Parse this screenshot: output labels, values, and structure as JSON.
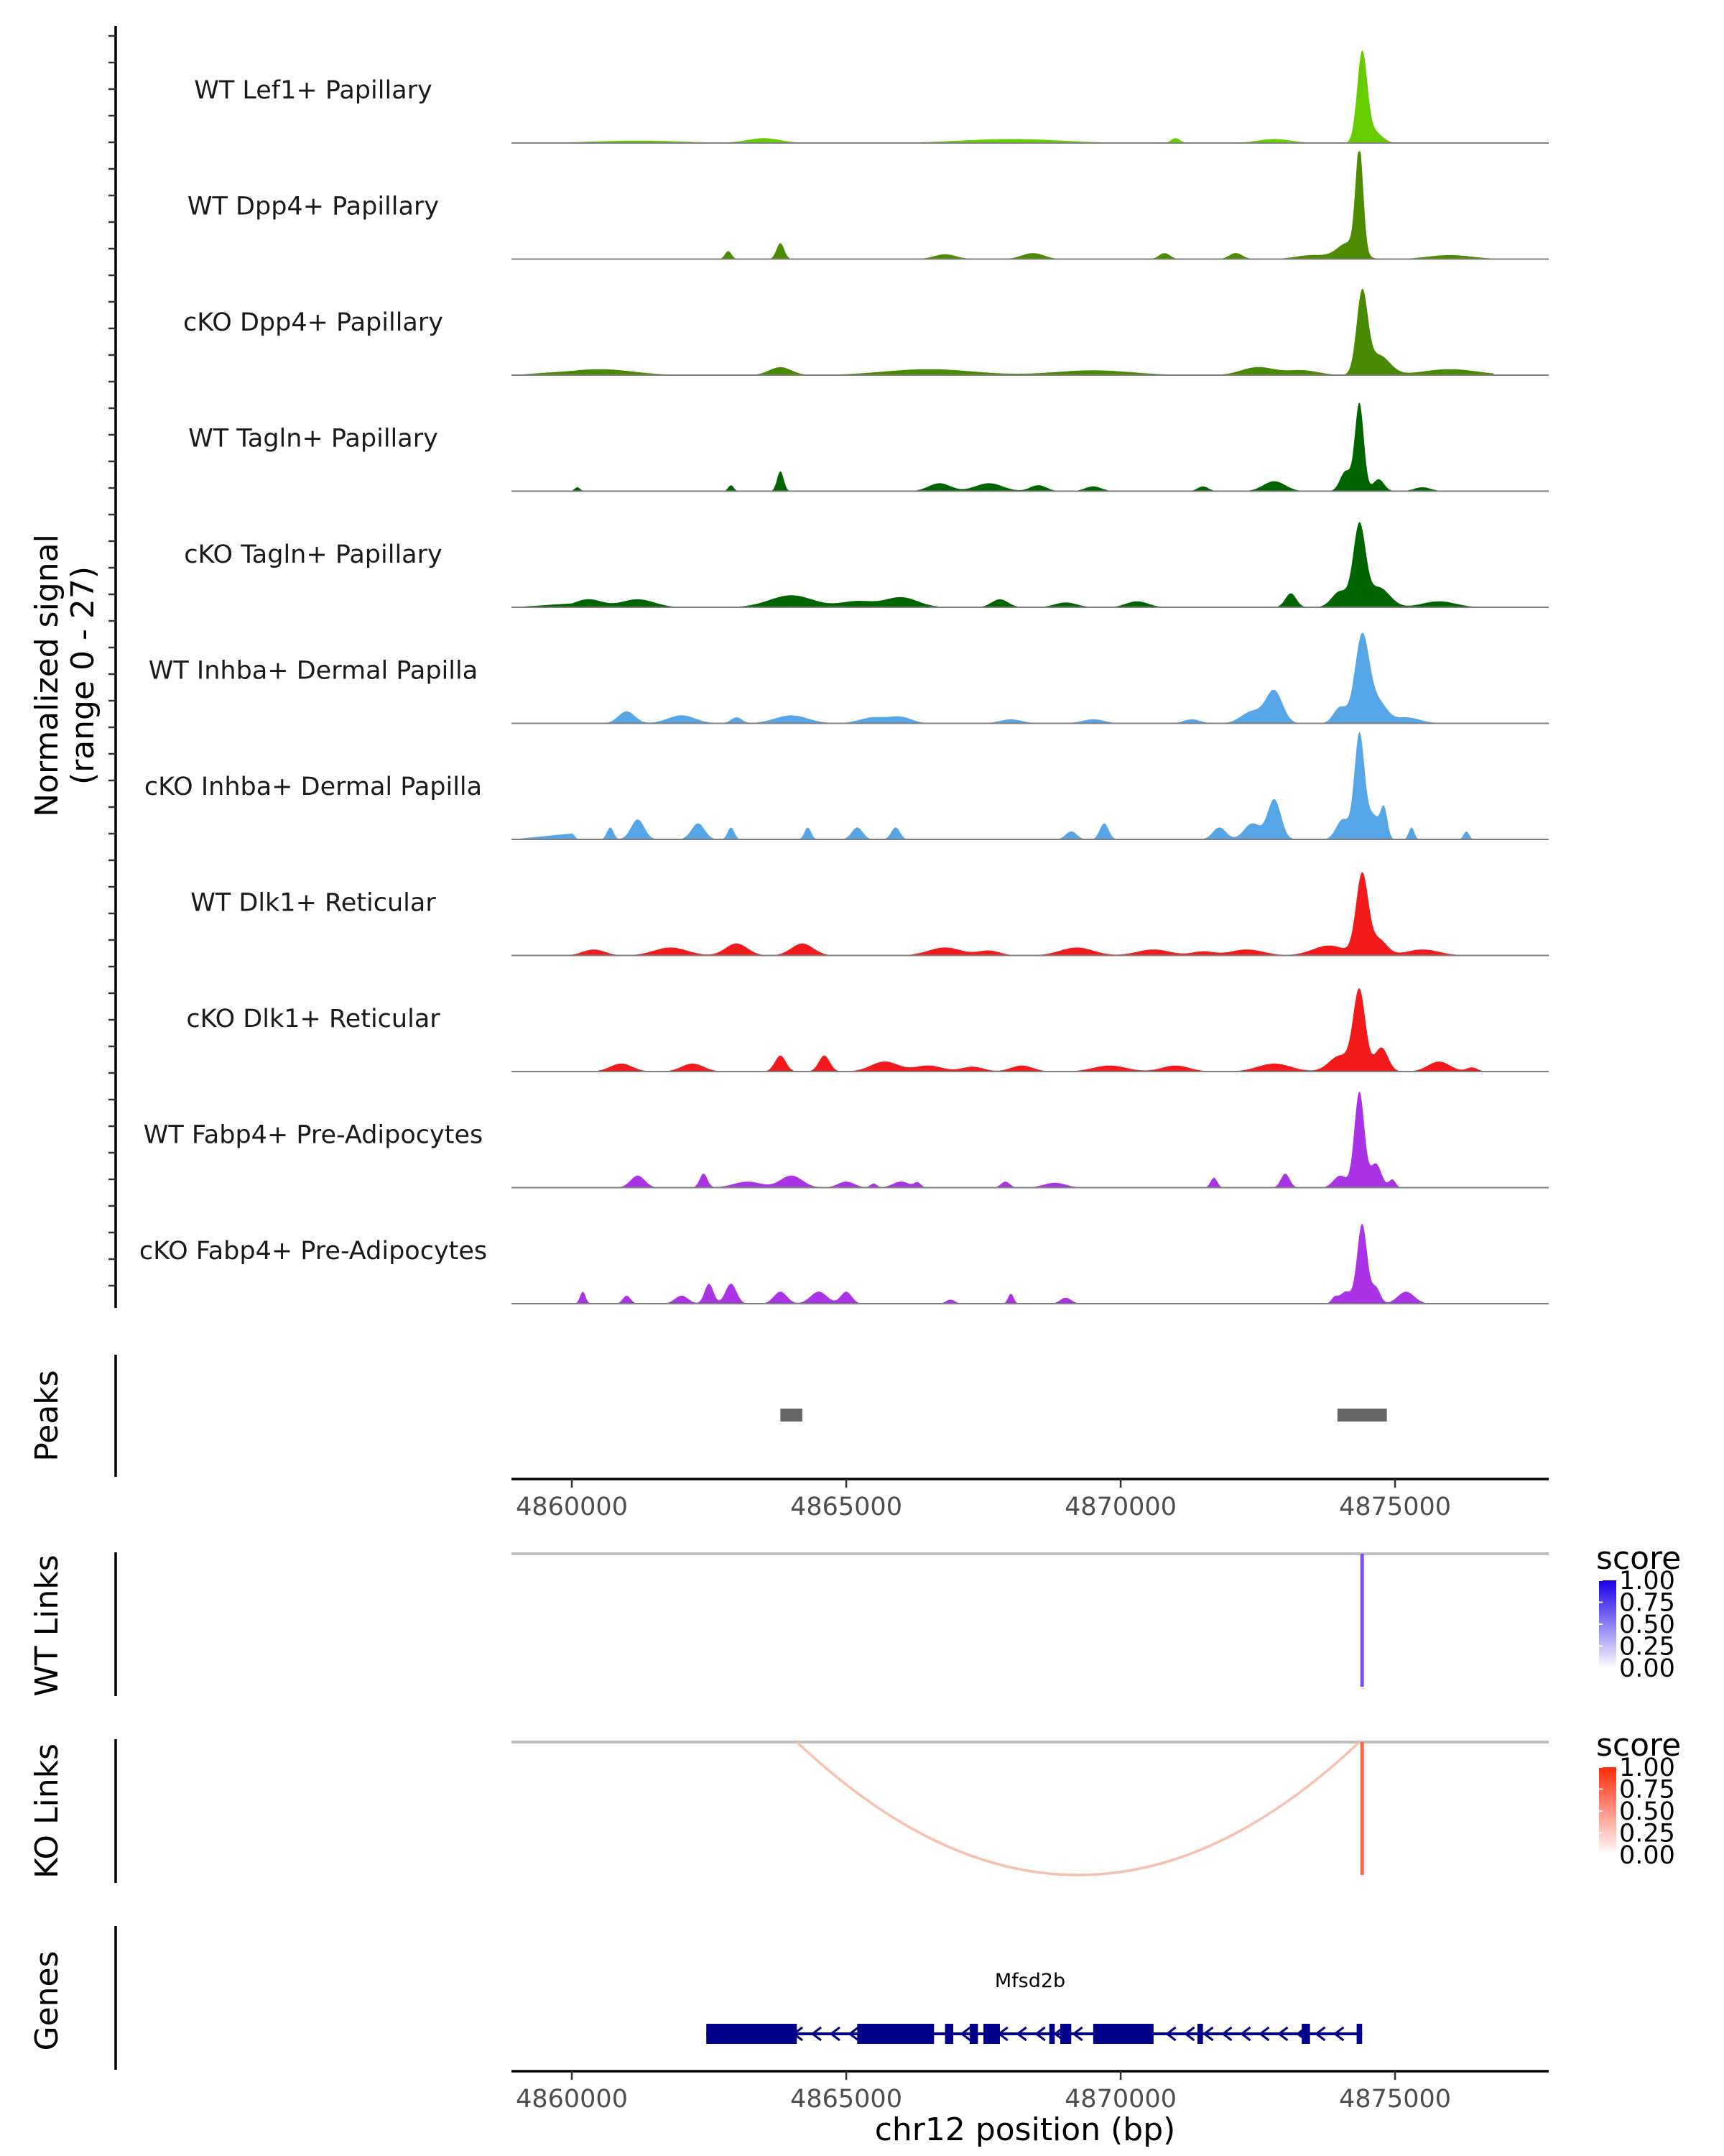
{
  "chart_data": {
    "type": "area",
    "title": "",
    "ylabel": "Normalized signal\n(range 0 - 27)",
    "xlabel": "chr12 position (bp)",
    "xlim": [
      4858900,
      4877800
    ],
    "ylim": [
      0,
      27
    ],
    "x_ticks": [
      4860000,
      4865000,
      4870000,
      4875000
    ],
    "x_tick_labels": [
      "4860000",
      "4865000",
      "4870000",
      "4875000"
    ],
    "tracks": [
      {
        "name": "WT Lef1+ Papillary",
        "color": "#66cc00",
        "peaks": [
          [
            4874400,
            22,
            90
          ],
          [
            4874600,
            3,
            150
          ],
          [
            4872800,
            1,
            300
          ],
          [
            4868000,
            1,
            900
          ],
          [
            4863500,
            1.2,
            300
          ],
          [
            4861200,
            0.6,
            800
          ],
          [
            4871000,
            1.2,
            80
          ]
        ]
      },
      {
        "name": "WT Dpp4+ Papillary",
        "color": "#4d8c00",
        "peaks": [
          [
            4874350,
            26,
            70
          ],
          [
            4874150,
            4,
            200
          ],
          [
            4863800,
            4,
            70
          ],
          [
            4862850,
            2,
            60
          ],
          [
            4872100,
            1.5,
            120
          ],
          [
            4868400,
            1.5,
            200
          ],
          [
            4866800,
            1.2,
            200
          ],
          [
            4870800,
            1.5,
            100
          ],
          [
            4873500,
            1,
            300
          ],
          [
            4876000,
            1,
            400
          ]
        ]
      },
      {
        "name": "cKO Dpp4+ Papillary",
        "color": "#478a00",
        "peaks": [
          [
            4874400,
            20,
            100
          ],
          [
            4874700,
            5,
            200
          ],
          [
            4872500,
            2,
            300
          ],
          [
            4863800,
            2,
            200
          ],
          [
            4860500,
            1.5,
            600
          ],
          [
            4866500,
            1.5,
            800
          ],
          [
            4869500,
            1.2,
            700
          ],
          [
            4876000,
            1.5,
            500
          ],
          [
            4873300,
            1.2,
            300
          ]
        ]
      },
      {
        "name": "WT Tagln+ Papillary",
        "color": "#006400",
        "peaks": [
          [
            4874350,
            22,
            80
          ],
          [
            4874100,
            5,
            100
          ],
          [
            4874700,
            3,
            100
          ],
          [
            4863800,
            5,
            60
          ],
          [
            4866700,
            2,
            200
          ],
          [
            4867600,
            2,
            250
          ],
          [
            4872800,
            2.5,
            200
          ],
          [
            4868500,
            1.5,
            150
          ],
          [
            4869500,
            1.2,
            150
          ],
          [
            4871500,
            1.2,
            100
          ],
          [
            4862900,
            1.5,
            50
          ],
          [
            4860100,
            1,
            50
          ],
          [
            4875500,
            1,
            150
          ]
        ]
      },
      {
        "name": "cKO Tagln+ Papillary",
        "color": "#006400",
        "peaks": [
          [
            4874350,
            20,
            110
          ],
          [
            4874700,
            5,
            200
          ],
          [
            4874000,
            4,
            150
          ],
          [
            4873100,
            3.5,
            100
          ],
          [
            4864000,
            3,
            400
          ],
          [
            4866000,
            2.5,
            300
          ],
          [
            4861200,
            2,
            300
          ],
          [
            4860300,
            2,
            250
          ],
          [
            4867800,
            2,
            150
          ],
          [
            4870300,
            1.5,
            200
          ],
          [
            4875800,
            1.5,
            300
          ],
          [
            4865200,
            1.5,
            300
          ],
          [
            4869000,
            1.2,
            200
          ]
        ]
      },
      {
        "name": "WT Inhba+ Dermal Papilla",
        "color": "#56a5e6",
        "peaks": [
          [
            4874400,
            22,
            130
          ],
          [
            4874700,
            5,
            150
          ],
          [
            4874000,
            4,
            120
          ],
          [
            4872800,
            8,
            150
          ],
          [
            4872400,
            3,
            200
          ],
          [
            4861000,
            3,
            150
          ],
          [
            4862000,
            2,
            250
          ],
          [
            4864000,
            2,
            300
          ],
          [
            4865500,
            1.5,
            250
          ],
          [
            4866000,
            1.5,
            200
          ],
          [
            4868000,
            1,
            200
          ],
          [
            4869500,
            1,
            200
          ],
          [
            4871300,
            1,
            150
          ],
          [
            4875200,
            1.5,
            250
          ],
          [
            4863000,
            1.5,
            100
          ]
        ]
      },
      {
        "name": "cKO Inhba+ Dermal Papilla",
        "color": "#56a5e6",
        "peaks": [
          [
            4874350,
            26,
            90
          ],
          [
            4874600,
            6,
            120
          ],
          [
            4874050,
            5,
            120
          ],
          [
            4872800,
            10,
            120
          ],
          [
            4872400,
            4,
            150
          ],
          [
            4871800,
            3,
            120
          ],
          [
            4861200,
            5,
            120
          ],
          [
            4860700,
            3,
            60
          ],
          [
            4862300,
            4,
            120
          ],
          [
            4862900,
            3,
            60
          ],
          [
            4864300,
            3,
            60
          ],
          [
            4865200,
            3,
            100
          ],
          [
            4865900,
            3,
            80
          ],
          [
            4869700,
            4,
            80
          ],
          [
            4869100,
            2,
            100
          ],
          [
            4874800,
            7,
            60
          ],
          [
            4875300,
            3,
            50
          ],
          [
            4876300,
            2,
            50
          ],
          [
            4860000,
            1.5,
            50
          ]
        ]
      },
      {
        "name": "WT Dlk1+ Reticular",
        "color": "#f21a1a",
        "peaks": [
          [
            4874400,
            20,
            110
          ],
          [
            4874700,
            4,
            150
          ],
          [
            4873800,
            2.5,
            300
          ],
          [
            4864200,
            3,
            200
          ],
          [
            4863000,
            3,
            200
          ],
          [
            4861800,
            2,
            300
          ],
          [
            4860400,
            1.5,
            200
          ],
          [
            4866800,
            2,
            300
          ],
          [
            4869200,
            2,
            300
          ],
          [
            4870600,
            1.5,
            300
          ],
          [
            4872300,
            1.5,
            300
          ],
          [
            4875500,
            1.5,
            300
          ],
          [
            4867600,
            1.2,
            200
          ],
          [
            4871500,
            1,
            200
          ]
        ]
      },
      {
        "name": "cKO Dlk1+ Reticular",
        "color": "#f21a1a",
        "peaks": [
          [
            4874350,
            20,
            110
          ],
          [
            4874750,
            6,
            120
          ],
          [
            4874000,
            4,
            200
          ],
          [
            4863800,
            4,
            100
          ],
          [
            4864600,
            4,
            100
          ],
          [
            4865700,
            2.5,
            250
          ],
          [
            4860900,
            2,
            200
          ],
          [
            4862200,
            2,
            200
          ],
          [
            4866500,
            1.5,
            250
          ],
          [
            4868200,
            1.5,
            200
          ],
          [
            4869800,
            1.5,
            300
          ],
          [
            4871000,
            1.5,
            250
          ],
          [
            4872800,
            2,
            300
          ],
          [
            4875800,
            2.5,
            200
          ],
          [
            4876400,
            1,
            100
          ],
          [
            4867300,
            1.2,
            200
          ]
        ]
      },
      {
        "name": "WT Fabp4+ Pre-Adipocytes",
        "color": "#aa33e6",
        "peaks": [
          [
            4874350,
            24,
            90
          ],
          [
            4874650,
            6,
            100
          ],
          [
            4874000,
            3,
            120
          ],
          [
            4873000,
            3.5,
            80
          ],
          [
            4861200,
            3,
            130
          ],
          [
            4862400,
            3.5,
            70
          ],
          [
            4864000,
            3,
            200
          ],
          [
            4863200,
            1.5,
            250
          ],
          [
            4865000,
            1.5,
            150
          ],
          [
            4866000,
            1.5,
            150
          ],
          [
            4866300,
            1.2,
            60
          ],
          [
            4867900,
            1.5,
            80
          ],
          [
            4868800,
            1.2,
            200
          ],
          [
            4871700,
            2.5,
            60
          ],
          [
            4865500,
            1,
            60
          ],
          [
            4874950,
            2,
            60
          ]
        ]
      },
      {
        "name": "cKO Fabp4+ Pre-Adipocytes",
        "color": "#aa33e6",
        "peaks": [
          [
            4874400,
            20,
            90
          ],
          [
            4874650,
            4,
            80
          ],
          [
            4874100,
            3,
            100
          ],
          [
            4875200,
            3,
            150
          ],
          [
            4862900,
            5,
            100
          ],
          [
            4862500,
            5,
            80
          ],
          [
            4862000,
            2,
            120
          ],
          [
            4863800,
            3,
            120
          ],
          [
            4864500,
            3,
            150
          ],
          [
            4865000,
            3,
            100
          ],
          [
            4866900,
            1,
            80
          ],
          [
            4868000,
            2.5,
            50
          ],
          [
            4869000,
            1.5,
            100
          ],
          [
            4860200,
            3,
            50
          ],
          [
            4861000,
            2,
            70
          ],
          [
            4873900,
            1.5,
            60
          ]
        ]
      }
    ],
    "peaks_track": {
      "label": "Peaks",
      "regions": [
        [
          4863800,
          4864200
        ],
        [
          4873950,
          4874850
        ]
      ]
    },
    "links": [
      {
        "label": "WT Links",
        "color": "#7b52f0",
        "arcs": [
          {
            "start": 4874400,
            "end": 4874400,
            "score": 0.8
          }
        ],
        "legend": {
          "title": "score",
          "ticks": [
            "1.00",
            "0.75",
            "0.50",
            "0.25",
            "0.00"
          ],
          "color": "#1a00e6"
        }
      },
      {
        "label": "KO Links",
        "color": "#f26b4f",
        "arcs": [
          {
            "start": 4864100,
            "end": 4874350,
            "score": 0.3
          },
          {
            "start": 4874400,
            "end": 4874400,
            "score": 0.8
          }
        ],
        "legend": {
          "title": "score",
          "ticks": [
            "1.00",
            "0.75",
            "0.50",
            "0.25",
            "0.00"
          ],
          "color": "#ff2a0a"
        }
      }
    ],
    "genes": {
      "label": "Genes",
      "name": "Mfsd2b",
      "strand": "-",
      "start": 4862450,
      "end": 4874400,
      "exons": [
        [
          4862450,
          4864100
        ],
        [
          4865200,
          4866600
        ],
        [
          4866800,
          4866950
        ],
        [
          4867250,
          4867400
        ],
        [
          4867500,
          4867800
        ],
        [
          4868700,
          4868800
        ],
        [
          4868900,
          4869100
        ],
        [
          4869500,
          4870600
        ],
        [
          4871400,
          4871500
        ],
        [
          4873300,
          4873450
        ],
        [
          4874300,
          4874400
        ]
      ]
    },
    "color_scales": [
      "#7b52f0",
      "#f26b4f",
      "#00008b",
      "#666666"
    ]
  }
}
